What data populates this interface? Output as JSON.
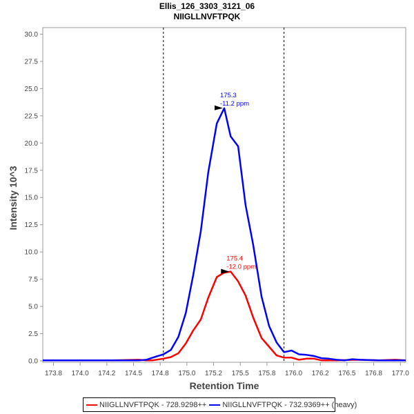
{
  "chart_data": {
    "type": "line",
    "title": "Ellis_126_3303_3121_06",
    "subtitle": "NIIGLLNVFTPQK",
    "xlabel": "Retention Time",
    "ylabel": "Intensity 10^3",
    "xlim": [
      173.65,
      177.05
    ],
    "ylim": [
      0,
      30.6
    ],
    "xticks": [
      173.75,
      174.0,
      174.25,
      174.5,
      174.75,
      175.0,
      175.25,
      175.5,
      175.75,
      176.0,
      176.25,
      176.5,
      176.75,
      177.0
    ],
    "xtick_labels": [
      "173.8",
      "174.0",
      "174.2",
      "174.5",
      "174.8",
      "175.0",
      "175.2",
      "175.5",
      "175.8",
      "176.0",
      "176.2",
      "176.5",
      "176.8",
      "177.0"
    ],
    "yticks": [
      0,
      2.5,
      5,
      7.5,
      10,
      12.5,
      15,
      17.5,
      20,
      22.5,
      25,
      27.5,
      30
    ],
    "ytick_labels": [
      "0.0",
      "2.5",
      "5.0",
      "7.5",
      "10.0",
      "12.5",
      "15.0",
      "17.5",
      "20.0",
      "22.5",
      "25.0",
      "27.5",
      "30.0"
    ],
    "vlines": [
      174.78,
      175.91
    ],
    "grid": false,
    "legend_position": "bottom",
    "series": [
      {
        "name": "NIIGLLNVFTPQK - 728.9298++",
        "color": "#ff0000",
        "x": [
          173.65,
          174.0,
          174.3,
          174.55,
          174.62,
          174.68,
          174.78,
          174.85,
          174.92,
          174.99,
          175.06,
          175.13,
          175.2,
          175.28,
          175.35,
          175.41,
          175.48,
          175.55,
          175.62,
          175.7,
          175.77,
          175.84,
          175.91,
          175.98,
          176.05,
          176.12,
          176.19,
          176.26,
          176.4,
          176.6,
          176.8,
          176.95,
          177.05
        ],
        "y": [
          0.05,
          0.05,
          0.05,
          0.1,
          0.05,
          0.05,
          0.2,
          0.35,
          0.7,
          1.6,
          2.8,
          3.8,
          5.8,
          7.7,
          8.1,
          8.2,
          7.3,
          6.0,
          4.0,
          2.1,
          1.3,
          0.5,
          0.3,
          0.3,
          0.1,
          0.2,
          0.2,
          0.05,
          0.05,
          0.1,
          0.05,
          0.1,
          0.05
        ],
        "annotation": {
          "x": 175.41,
          "y": 8.2,
          "lines": [
            "175.4",
            "-12.0 ppm"
          ]
        }
      },
      {
        "name": "NIIGLLNVFTPQK - 732.9369++ (heavy)",
        "color": "#0000ff",
        "x": [
          173.65,
          174.0,
          174.3,
          174.55,
          174.62,
          174.68,
          174.78,
          174.85,
          174.92,
          174.99,
          175.06,
          175.13,
          175.2,
          175.28,
          175.35,
          175.41,
          175.48,
          175.55,
          175.62,
          175.7,
          175.77,
          175.84,
          175.91,
          175.98,
          176.05,
          176.12,
          176.19,
          176.26,
          176.33,
          176.4,
          176.48,
          176.55,
          176.62,
          176.8,
          177.05
        ],
        "y": [
          0.05,
          0.05,
          0.05,
          0.05,
          0.1,
          0.3,
          0.6,
          1.0,
          2.2,
          4.4,
          7.9,
          11.9,
          17.3,
          21.8,
          23.2,
          20.6,
          19.7,
          14.3,
          10.7,
          5.9,
          3.2,
          1.7,
          0.8,
          0.95,
          0.6,
          0.55,
          0.45,
          0.25,
          0.2,
          0.1,
          0.05,
          0.15,
          0.1,
          0.05,
          0.05
        ],
        "annotation": {
          "x": 175.35,
          "y": 23.2,
          "lines": [
            "175.3",
            "-11.2 ppm"
          ]
        }
      }
    ]
  }
}
